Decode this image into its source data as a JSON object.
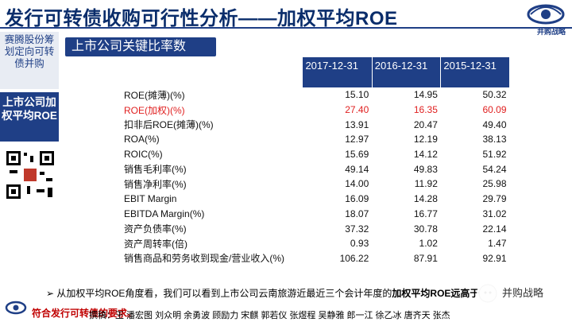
{
  "title": "发行可转债收购可行性分析——加权平均ROE",
  "logo": {
    "text": "并购战略"
  },
  "sidebar": {
    "item1": "赛腾股份筹划定向可转债并购",
    "item2": "上市公司加权平均ROE"
  },
  "section_header": "上市公司关键比率数",
  "table": {
    "headers": [
      "2017-12-31",
      "2016-12-31",
      "2015-12-31"
    ],
    "rows": [
      {
        "label": "ROE(摊薄)(%)",
        "v": [
          "15.10",
          "14.95",
          "50.32"
        ],
        "highlight": false
      },
      {
        "label": "ROE(加权)(%)",
        "v": [
          "27.40",
          "16.35",
          "60.09"
        ],
        "highlight": true
      },
      {
        "label": "扣非后ROE(摊薄)(%)",
        "v": [
          "13.91",
          "20.47",
          "49.40"
        ],
        "highlight": false
      },
      {
        "label": "ROA(%)",
        "v": [
          "12.97",
          "12.19",
          "38.13"
        ],
        "highlight": false
      },
      {
        "label": "ROIC(%)",
        "v": [
          "15.69",
          "14.12",
          "51.92"
        ],
        "highlight": false
      },
      {
        "label": "销售毛利率(%)",
        "v": [
          "49.14",
          "49.83",
          "54.24"
        ],
        "highlight": false
      },
      {
        "label": "销售净利率(%)",
        "v": [
          "14.00",
          "11.92",
          "25.98"
        ],
        "highlight": false
      },
      {
        "label": "EBIT Margin",
        "v": [
          "16.09",
          "14.28",
          "29.79"
        ],
        "highlight": false
      },
      {
        "label": "EBITDA Margin(%)",
        "v": [
          "18.07",
          "16.77",
          "31.02"
        ],
        "highlight": false
      },
      {
        "label": "资产负债率(%)",
        "v": [
          "37.32",
          "30.78",
          "22.14"
        ],
        "highlight": false
      },
      {
        "label": "资产周转率(倍)",
        "v": [
          "0.93",
          "1.02",
          "1.47"
        ],
        "highlight": false
      },
      {
        "label": "销售商品和劳务收到现金/营业收入(%)",
        "v": [
          "106.22",
          "87.91",
          "92.91"
        ],
        "highlight": false
      }
    ]
  },
  "note": {
    "bullet": "➢",
    "text": "从加权平均ROE角度看，我们可以看到上市公司云南旅游近最近三个会计年度的",
    "bold": "加权平均ROE远高于6%，",
    "line2": "符合发行可转债的要求。"
  },
  "authors": "撰稿：王 潘宏图 刘众明 余勇波 顾励力 宋麒 郭若仪 张煜程 吴静雅 郎一江 徐乙冰 唐齐天 张杰",
  "watermark": "并购战略",
  "colors": {
    "brand": "#1f3f86",
    "highlight": "#e02020"
  }
}
